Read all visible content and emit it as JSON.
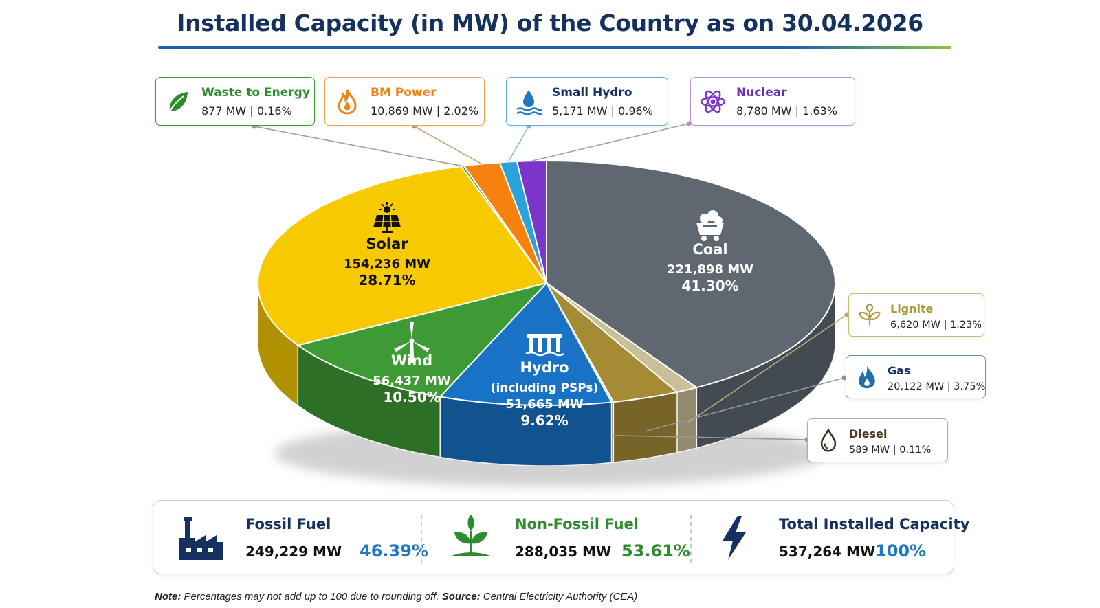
{
  "title": "Installed Capacity (in MW) of the Country as on 30.04.2026",
  "chart_data": {
    "type": "pie",
    "unit": "MW",
    "categories": [
      "Coal",
      "Lignite",
      "Gas",
      "Diesel",
      "Hydro (including PSPs)",
      "Wind",
      "Solar",
      "Waste to Energy",
      "BM Power",
      "Small Hydro",
      "Nuclear"
    ],
    "slices": [
      {
        "name": "Coal",
        "mw": 221898,
        "mw_label": "221,898 MW",
        "pct": 41.3,
        "pct_label": "41.30%",
        "color": "#5f6771"
      },
      {
        "name": "Lignite",
        "mw": 6620,
        "mw_label": "6,620 MW",
        "pct": 1.23,
        "pct_label": "1.23%",
        "color": "#c9c09a"
      },
      {
        "name": "Gas",
        "mw": 20122,
        "mw_label": "20,122 MW",
        "pct": 3.75,
        "pct_label": "3.75%",
        "color": "#a68b35"
      },
      {
        "name": "Diesel",
        "mw": 589,
        "mw_label": "589 MW",
        "pct": 0.11,
        "pct_label": "0.11%",
        "color": "#b5ad8c"
      },
      {
        "name": "Hydro",
        "name_sub": "(including PSPs)",
        "mw": 51665,
        "mw_label": "51,665 MW",
        "pct": 9.62,
        "pct_label": "9.62%",
        "color": "#1873c7"
      },
      {
        "name": "Wind",
        "mw": 56437,
        "mw_label": "56,437 MW",
        "pct": 10.5,
        "pct_label": "10.50%",
        "color": "#3e9a35"
      },
      {
        "name": "Solar",
        "mw": 154236,
        "mw_label": "154,236 MW",
        "pct": 28.71,
        "pct_label": "28.71%",
        "color": "#f7c900"
      },
      {
        "name": "Waste to Energy",
        "mw": 877,
        "mw_label": "877 MW",
        "pct": 0.16,
        "pct_label": "0.16%",
        "color": "#2f8f2f"
      },
      {
        "name": "BM Power",
        "mw": 10869,
        "mw_label": "10,869 MW",
        "pct": 2.02,
        "pct_label": "2.02%",
        "color": "#f5820f"
      },
      {
        "name": "Small Hydro",
        "mw": 5171,
        "mw_label": "5,171 MW",
        "pct": 0.96,
        "pct_label": "0.96%",
        "color": "#2aa3dd"
      },
      {
        "name": "Nuclear",
        "mw": 8780,
        "mw_label": "8,780 MW",
        "pct": 1.63,
        "pct_label": "1.63%",
        "color": "#7b35c9"
      }
    ]
  },
  "callouts": {
    "waste": {
      "name": "Waste to Energy",
      "value": "877 MW | 0.16%",
      "color": "#2e8b2e"
    },
    "bm": {
      "name": "BM Power",
      "value": "10,869 MW | 2.02%",
      "color": "#f08316"
    },
    "small_hydro": {
      "name": "Small Hydro",
      "value": "5,171 MW | 0.96%",
      "color": "#1f78c1"
    },
    "nuclear": {
      "name": "Nuclear",
      "value": "8,780 MW | 1.63%",
      "color": "#6a2fb0"
    },
    "lignite": {
      "name": "Lignite",
      "value": "6,620 MW | 1.23%",
      "color": "#a89a3c"
    },
    "gas": {
      "name": "Gas",
      "value": "20,122 MW | 3.75%",
      "color": "#14315f"
    },
    "diesel": {
      "name": "Diesel",
      "value": "589 MW | 0.11%",
      "color": "#4a3a24"
    }
  },
  "summary": {
    "fossil": {
      "label": "Fossil Fuel",
      "mw": "249,229 MW",
      "pct": "46.39%"
    },
    "nonfossil": {
      "label": "Non-Fossil Fuel",
      "mw": "288,035 MW",
      "pct": "53.61%"
    },
    "total": {
      "label": "Total Installed Capacity",
      "mw": "537,264 MW",
      "pct": "100%"
    }
  },
  "note": {
    "note_label": "Note:",
    "note_text": " Percentages may not add up to 100 due to rounding off. ",
    "source_label": "Source:",
    "source_text": " Central Electricity Authority (CEA)"
  }
}
